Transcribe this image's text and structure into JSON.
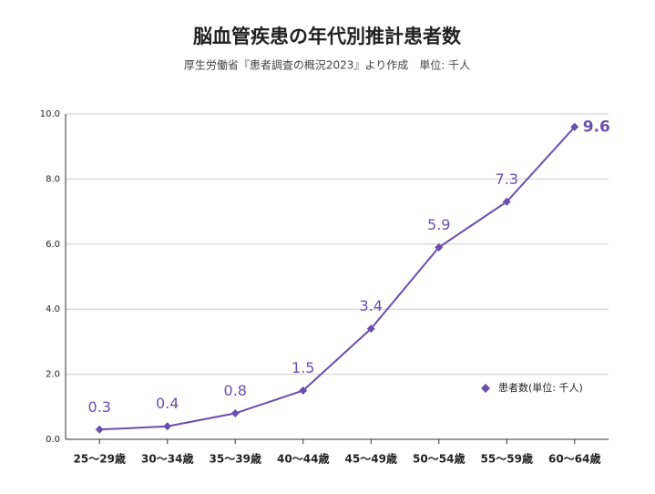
{
  "chart_data": {
    "type": "line",
    "title": "脳血管疾患の年代別推計患者数",
    "subtitle": "厚生労働省『患者調査の概況2023』より作成　単位: 千人",
    "categories": [
      "25〜29歳",
      "30〜34歳",
      "35〜39歳",
      "40〜44歳",
      "45〜49歳",
      "50〜54歳",
      "55〜59歳",
      "60〜64歳"
    ],
    "series": [
      {
        "name": "患者数(単位: 千人)",
        "color": "#6a4fad",
        "values": [
          0.3,
          0.4,
          0.8,
          1.5,
          3.4,
          5.9,
          7.3,
          9.6
        ]
      }
    ],
    "ylim": [
      0,
      10
    ],
    "yticks": [
      {
        "value": 0,
        "label": "0.0"
      },
      {
        "value": 2,
        "label": "2.0"
      },
      {
        "value": 4,
        "label": "4.0"
      },
      {
        "value": 6,
        "label": "6.0"
      },
      {
        "value": 8,
        "label": "8.0"
      },
      {
        "value": 10,
        "label": "10.0"
      }
    ],
    "grid": true,
    "legend": "lower right"
  }
}
